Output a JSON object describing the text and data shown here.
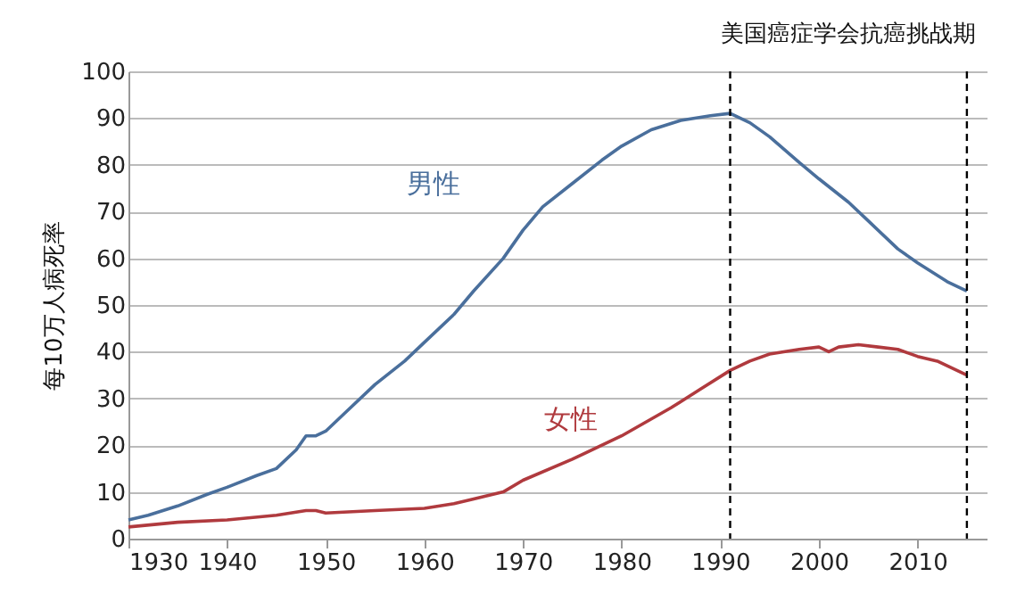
{
  "chart_data": {
    "type": "line",
    "ylabel": "每10万人病死率",
    "xlim": [
      1930,
      2017
    ],
    "xticks": [
      1930,
      1940,
      1950,
      1960,
      1970,
      1980,
      1990,
      2000,
      2010
    ],
    "ylim": [
      0,
      100
    ],
    "yticks": [
      0,
      10,
      20,
      30,
      40,
      50,
      60,
      70,
      80,
      90,
      100
    ],
    "grid": "y",
    "marker": "none",
    "line_style": "solid",
    "series": [
      {
        "color": "#4a6f9c",
        "x": [
          1930,
          1932,
          1935,
          1938,
          1940,
          1943,
          1945,
          1947,
          1948,
          1949,
          1950,
          1952,
          1955,
          1958,
          1960,
          1963,
          1965,
          1968,
          1970,
          1972,
          1975,
          1978,
          1980,
          1983,
          1986,
          1989,
          1991,
          1993,
          1995,
          1998,
          2000,
          2003,
          2005,
          2008,
          2010,
          2013,
          2015
        ],
        "values": [
          4,
          5,
          7,
          9.5,
          11,
          13.5,
          15,
          19,
          22,
          22,
          23,
          27,
          33,
          38,
          42,
          48,
          53,
          60,
          66,
          71,
          76,
          81,
          84,
          87.5,
          89.5,
          90.5,
          91,
          89,
          86,
          80.5,
          77,
          72,
          68,
          62,
          59,
          55,
          53
        ]
      },
      {
        "color": "#b03a3e",
        "x": [
          1930,
          1935,
          1940,
          1945,
          1948,
          1949,
          1950,
          1955,
          1960,
          1963,
          1965,
          1968,
          1970,
          1975,
          1980,
          1985,
          1988,
          1991,
          1993,
          1995,
          1998,
          2000,
          2001,
          2002,
          2004,
          2006,
          2008,
          2010,
          2012,
          2015
        ],
        "values": [
          2.5,
          3.5,
          4,
          5,
          6,
          6,
          5.5,
          6,
          6.5,
          7.5,
          8.5,
          10,
          12.5,
          17,
          22,
          28,
          32,
          36,
          38,
          39.5,
          40.5,
          41,
          40,
          41,
          41.5,
          41,
          40.5,
          39,
          38,
          35
        ]
      }
    ],
    "ref_lines": [
      {
        "axis": "x",
        "value": 1991,
        "color": "#000000",
        "line_style": "dashed"
      },
      {
        "axis": "x",
        "value": 2015,
        "color": "#000000",
        "line_style": "dashed"
      }
    ],
    "annotations": [
      "美国癌症学会抗癌挑战期",
      "男性",
      "女性"
    ]
  }
}
